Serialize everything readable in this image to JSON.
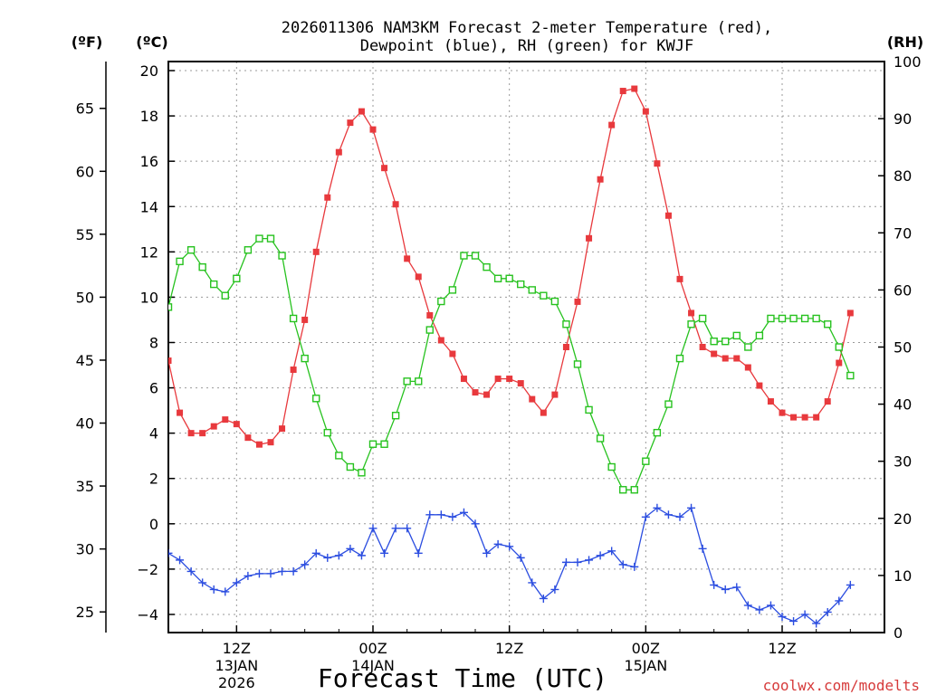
{
  "chart_data": {
    "type": "line",
    "title_lines": [
      "2026011306 NAM3KM Forecast 2-meter Temperature (red),",
      "Dewpoint (blue), RH (green) for KWJF"
    ],
    "xlabel": "Forecast Time (UTC)",
    "credit": "coolwx.com/modelts",
    "left_unit_f": "(ºF)",
    "left_unit_c": "(ºC)",
    "right_unit": "(RH)",
    "x_range_hours": [
      0,
      63
    ],
    "c_axis": {
      "range": [
        -4.8,
        20.4
      ],
      "ticks": [
        -4,
        -2,
        0,
        2,
        4,
        6,
        8,
        10,
        12,
        14,
        16,
        18,
        20
      ]
    },
    "f_axis": {
      "ticks": [
        25,
        30,
        35,
        40,
        45,
        50,
        55,
        60,
        65
      ]
    },
    "rh_axis": {
      "range": [
        0,
        100
      ],
      "ticks": [
        0,
        10,
        20,
        30,
        40,
        50,
        60,
        70,
        80,
        90,
        100
      ]
    },
    "x_ticks": [
      {
        "hour": 6,
        "label1": "12Z",
        "label2": "13JAN",
        "label3": "2026"
      },
      {
        "hour": 18,
        "label1": "00Z",
        "label2": "14JAN",
        "label3": ""
      },
      {
        "hour": 30,
        "label1": "12Z",
        "label2": "",
        "label3": ""
      },
      {
        "hour": 42,
        "label1": "00Z",
        "label2": "15JAN",
        "label3": ""
      },
      {
        "hour": 54,
        "label1": "12Z",
        "label2": "",
        "label3": ""
      }
    ],
    "series": [
      {
        "name": "Temperature",
        "unit": "C",
        "color": "#e8393d",
        "marker": "filled-square",
        "values": [
          7.2,
          4.9,
          4.0,
          4.0,
          4.3,
          4.6,
          4.4,
          3.8,
          3.5,
          3.6,
          4.2,
          6.8,
          9.0,
          12.0,
          14.4,
          16.4,
          17.7,
          18.2,
          17.4,
          15.7,
          14.1,
          11.7,
          10.9,
          9.2,
          8.1,
          7.5,
          6.4,
          5.8,
          5.7,
          6.4,
          6.4,
          6.2,
          5.5,
          4.9,
          5.7,
          7.8,
          9.8,
          12.6,
          15.2,
          17.6,
          19.1,
          19.2,
          18.2,
          15.9,
          13.6,
          10.8,
          9.3,
          7.8,
          7.5,
          7.3,
          7.3,
          6.9,
          6.1,
          5.4,
          4.9,
          4.7,
          4.7,
          4.7,
          5.4,
          7.1,
          9.3
        ]
      },
      {
        "name": "Dewpoint",
        "unit": "C",
        "color": "#2b4de0",
        "marker": "plus",
        "values": [
          -1.3,
          -1.6,
          -2.1,
          -2.6,
          -2.9,
          -3.0,
          -2.6,
          -2.3,
          -2.2,
          -2.2,
          -2.1,
          -2.1,
          -1.8,
          -1.3,
          -1.5,
          -1.4,
          -1.1,
          -1.4,
          -0.2,
          -1.3,
          -0.2,
          -0.2,
          -1.3,
          0.4,
          0.4,
          0.3,
          0.5,
          0.0,
          -1.3,
          -0.9,
          -1.0,
          -1.5,
          -2.6,
          -3.3,
          -2.9,
          -1.7,
          -1.7,
          -1.6,
          -1.4,
          -1.2,
          -1.8,
          -1.9,
          0.3,
          0.7,
          0.4,
          0.3,
          0.7,
          -1.1,
          -2.7,
          -2.9,
          -2.8,
          -3.6,
          -3.8,
          -3.6,
          -4.1,
          -4.3,
          -4.0,
          -4.4,
          -3.9,
          -3.4,
          -2.7
        ]
      },
      {
        "name": "RH",
        "unit": "%",
        "color": "#27c21f",
        "marker": "open-square",
        "values": [
          57,
          65,
          67,
          64,
          61,
          59,
          62,
          67,
          69,
          69,
          66,
          55,
          48,
          41,
          35,
          31,
          29,
          28,
          33,
          33,
          38,
          44,
          44,
          53,
          58,
          60,
          66,
          66,
          64,
          62,
          62,
          61,
          60,
          59,
          58,
          54,
          47,
          39,
          34,
          29,
          25,
          25,
          30,
          35,
          40,
          48,
          54,
          55,
          51,
          51,
          52,
          50,
          52,
          55,
          55,
          55,
          55,
          55,
          54,
          50,
          45
        ]
      }
    ]
  }
}
